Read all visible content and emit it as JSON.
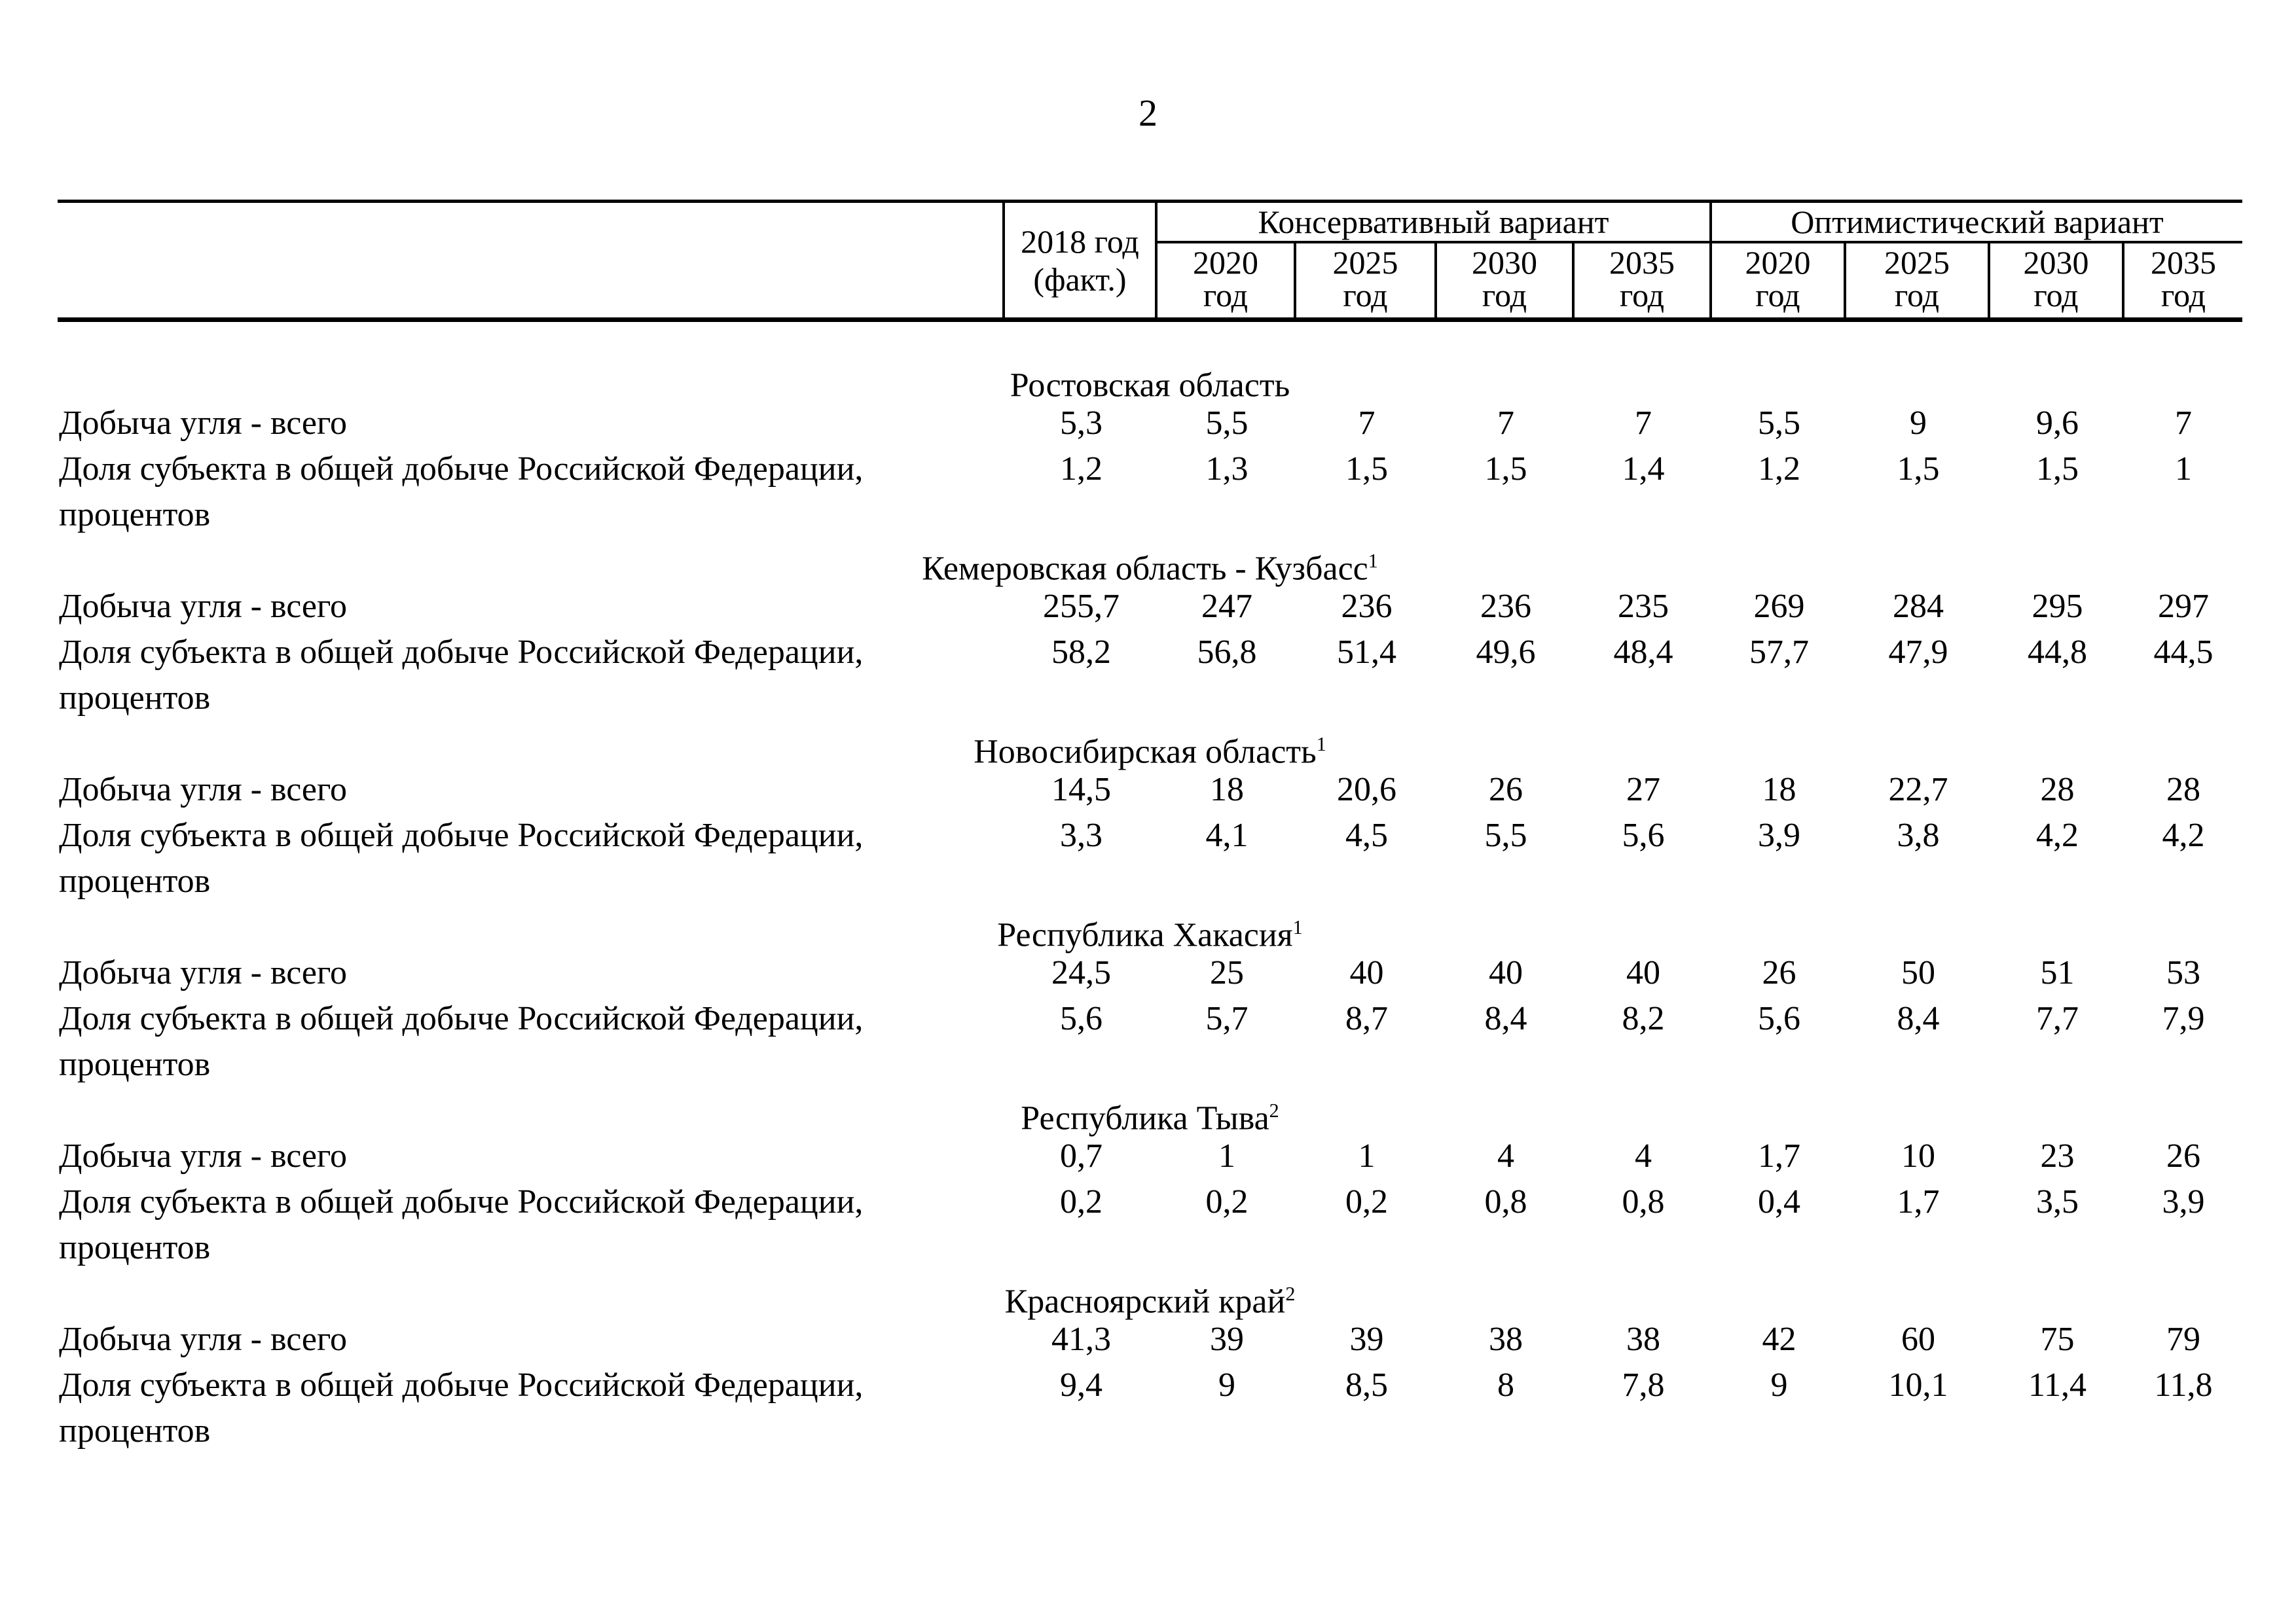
{
  "page": {
    "number": "2"
  },
  "table": {
    "header": {
      "col_2018": "2018 год\n(факт.)",
      "conservative": "Консервативный вариант",
      "optimistic": "Оптимистический вариант",
      "years": [
        "2020",
        "2025",
        "2030",
        "2035"
      ],
      "year_word": "год"
    },
    "row_labels": {
      "production": "Добыча угля - всего",
      "share": "Доля субъекта в общей добыче Российской Федерации,\nпроцентов"
    },
    "sections": [
      {
        "title": "Ростовская область",
        "sup": "",
        "production": [
          "5,3",
          "5,5",
          "7",
          "7",
          "7",
          "5,5",
          "9",
          "9,6",
          "7"
        ],
        "share": [
          "1,2",
          "1,3",
          "1,5",
          "1,5",
          "1,4",
          "1,2",
          "1,5",
          "1,5",
          "1"
        ]
      },
      {
        "title": "Кемеровская область - Кузбасс",
        "sup": "1",
        "production": [
          "255,7",
          "247",
          "236",
          "236",
          "235",
          "269",
          "284",
          "295",
          "297"
        ],
        "share": [
          "58,2",
          "56,8",
          "51,4",
          "49,6",
          "48,4",
          "57,7",
          "47,9",
          "44,8",
          "44,5"
        ]
      },
      {
        "title": "Новосибирская область",
        "sup": "1",
        "production": [
          "14,5",
          "18",
          "20,6",
          "26",
          "27",
          "18",
          "22,7",
          "28",
          "28"
        ],
        "share": [
          "3,3",
          "4,1",
          "4,5",
          "5,5",
          "5,6",
          "3,9",
          "3,8",
          "4,2",
          "4,2"
        ]
      },
      {
        "title": "Республика Хакасия",
        "sup": "1",
        "production": [
          "24,5",
          "25",
          "40",
          "40",
          "40",
          "26",
          "50",
          "51",
          "53"
        ],
        "share": [
          "5,6",
          "5,7",
          "8,7",
          "8,4",
          "8,2",
          "5,6",
          "8,4",
          "7,7",
          "7,9"
        ]
      },
      {
        "title": "Республика Тыва",
        "sup": "2",
        "production": [
          "0,7",
          "1",
          "1",
          "4",
          "4",
          "1,7",
          "10",
          "23",
          "26"
        ],
        "share": [
          "0,2",
          "0,2",
          "0,2",
          "0,8",
          "0,8",
          "0,4",
          "1,7",
          "3,5",
          "3,9"
        ]
      },
      {
        "title": "Красноярский край",
        "sup": "2",
        "production": [
          "41,3",
          "39",
          "39",
          "38",
          "38",
          "42",
          "60",
          "75",
          "79"
        ],
        "share": [
          "9,4",
          "9",
          "8,5",
          "8",
          "7,8",
          "9",
          "10,1",
          "11,4",
          "11,8"
        ]
      }
    ]
  }
}
